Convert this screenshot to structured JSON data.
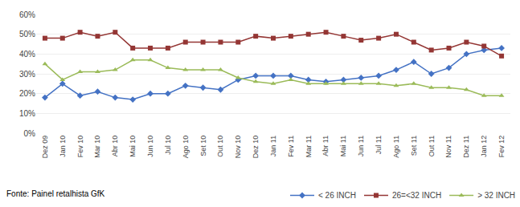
{
  "chart_data": {
    "type": "line",
    "categories": [
      "Dez 09",
      "Jan 10",
      "Fev 10",
      "Mar 10",
      "Abr 10",
      "Mai 10",
      "Jun 10",
      "Jul 10",
      "Ago 10",
      "Set 10",
      "Out 10",
      "Nov 10",
      "Dez 10",
      "Jan 11",
      "Fev 11",
      "Mar 11",
      "Abr 11",
      "Mai 11",
      "Jun 11",
      "Jul 11",
      "Ago 11",
      "Set 11",
      "Out 11",
      "Nov 11",
      "Dez 11",
      "Jan 12",
      "Fev 12"
    ],
    "series": [
      {
        "name": "< 26 INCH",
        "color": "#4472C4",
        "marker": "diamond",
        "values": [
          0.18,
          0.25,
          0.19,
          0.21,
          0.18,
          0.17,
          0.2,
          0.2,
          0.24,
          0.23,
          0.22,
          0.27,
          0.29,
          0.29,
          0.29,
          0.27,
          0.26,
          0.27,
          0.28,
          0.29,
          0.32,
          0.36,
          0.3,
          0.33,
          0.4,
          0.42,
          0.43
        ]
      },
      {
        "name": "26=<32 INCH",
        "color": "#943634",
        "marker": "square",
        "values": [
          0.48,
          0.48,
          0.51,
          0.49,
          0.51,
          0.43,
          0.43,
          0.43,
          0.46,
          0.46,
          0.46,
          0.46,
          0.49,
          0.48,
          0.49,
          0.5,
          0.51,
          0.49,
          0.47,
          0.48,
          0.5,
          0.46,
          0.42,
          0.43,
          0.46,
          0.44,
          0.39
        ]
      },
      {
        "name": "> 32 INCH",
        "color": "#9BBB59",
        "marker": "triangle-up",
        "values": [
          0.35,
          0.27,
          0.31,
          0.31,
          0.32,
          0.37,
          0.37,
          0.33,
          0.32,
          0.32,
          0.32,
          0.28,
          0.26,
          0.25,
          0.27,
          0.25,
          0.25,
          0.25,
          0.25,
          0.25,
          0.24,
          0.25,
          0.23,
          0.23,
          0.22,
          0.19,
          0.19
        ]
      }
    ],
    "ylim": [
      0.0,
      0.6
    ],
    "yticks": [
      {
        "value": 0.0,
        "label": "0%"
      },
      {
        "value": 0.1,
        "label": "10%"
      },
      {
        "value": 0.2,
        "label": "20%"
      },
      {
        "value": 0.3,
        "label": "30%"
      },
      {
        "value": 0.4,
        "label": "40%"
      },
      {
        "value": 0.5,
        "label": "50%"
      },
      {
        "value": 0.6,
        "label": "60%"
      }
    ],
    "grid": true,
    "legend": "lower right",
    "annotations": [
      "Fonte: Painel retalhista GfK"
    ]
  }
}
